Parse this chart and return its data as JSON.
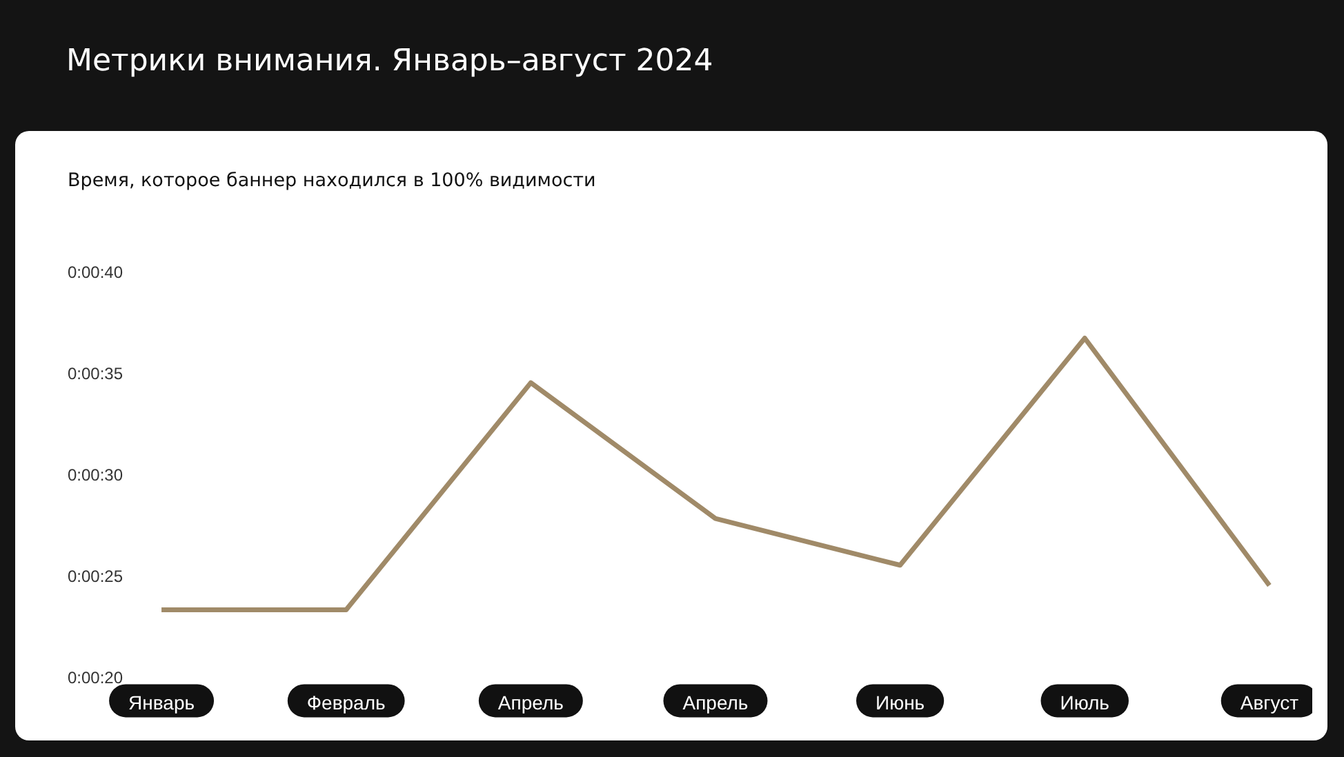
{
  "chart_data": {
    "type": "line",
    "title": "Метрики внимания. Январь–август 2024",
    "subtitle": "Время, которое баннер находился в 100% видимости",
    "categories": [
      "Январь",
      "Февраль",
      "Апрель",
      "Апрель",
      "Июнь",
      "Июль",
      "Август"
    ],
    "series": [
      {
        "color": "#a08a68",
        "values": [
          23.4,
          23.4,
          34.6,
          27.9,
          25.6,
          36.8,
          24.6
        ]
      }
    ],
    "ylim": [
      20,
      40
    ],
    "yticks": [
      {
        "value": 20,
        "label": "0:00:20"
      },
      {
        "value": 25,
        "label": "0:00:25"
      },
      {
        "value": 30,
        "label": "0:00:30"
      },
      {
        "value": 35,
        "label": "0:00:35"
      },
      {
        "value": 40,
        "label": "0:00:40"
      }
    ],
    "grid": false,
    "legend": false,
    "marker": "none",
    "line_style": "solid"
  }
}
